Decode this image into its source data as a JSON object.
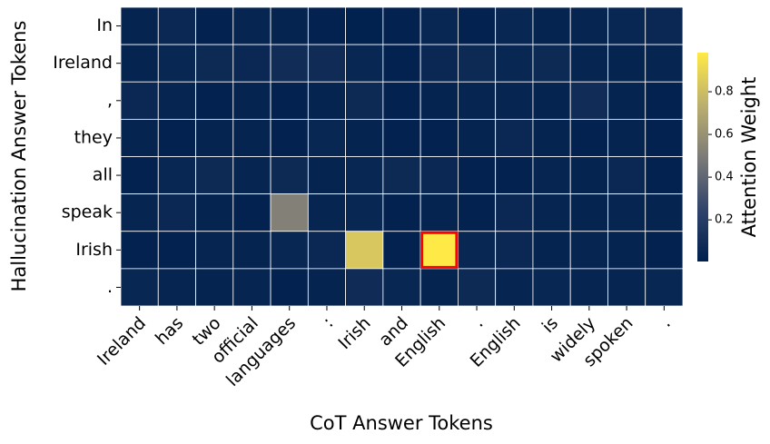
{
  "chart_data": {
    "type": "heatmap",
    "x_label": "CoT Answer Tokens",
    "y_label": "Hallucination Answer Tokens",
    "colorbar_label": "Attention Weight",
    "colormap": "cividis",
    "x": [
      "Ireland",
      "has",
      "two",
      "official",
      "languages",
      ":",
      "Irish",
      "and",
      "English",
      ".",
      "English",
      "is",
      "widely",
      "spoken",
      "."
    ],
    "y": [
      "In",
      "Ireland",
      ",",
      "they",
      "all",
      "speak",
      "Irish",
      "."
    ],
    "values": [
      [
        0.03,
        0.06,
        0.02,
        0.04,
        0.03,
        0.02,
        0.01,
        0.02,
        0.05,
        0.02,
        0.05,
        0.03,
        0.04,
        0.05,
        0.06
      ],
      [
        0.03,
        0.05,
        0.07,
        0.06,
        0.09,
        0.08,
        0.05,
        0.02,
        0.06,
        0.07,
        0.05,
        0.07,
        0.04,
        0.03,
        0.04
      ],
      [
        0.06,
        0.04,
        0.02,
        0.03,
        0.02,
        0.03,
        0.07,
        0.02,
        0.03,
        0.04,
        0.04,
        0.03,
        0.09,
        0.03,
        0.02
      ],
      [
        0.03,
        0.02,
        0.03,
        0.03,
        0.02,
        0.05,
        0.03,
        0.02,
        0.02,
        0.03,
        0.06,
        0.03,
        0.02,
        0.03,
        0.02
      ],
      [
        0.02,
        0.05,
        0.07,
        0.04,
        0.07,
        0.03,
        0.05,
        0.07,
        0.06,
        0.02,
        0.02,
        0.04,
        0.03,
        0.06,
        0.02
      ],
      [
        0.04,
        0.06,
        0.03,
        0.02,
        0.52,
        0.04,
        0.05,
        0.02,
        0.03,
        0.02,
        0.06,
        0.04,
        0.03,
        0.04,
        0.03
      ],
      [
        0.02,
        0.02,
        0.04,
        0.03,
        0.05,
        0.06,
        0.84,
        0.02,
        0.98,
        0.05,
        0.06,
        0.03,
        0.04,
        0.03,
        0.02
      ],
      [
        0.05,
        0.04,
        0.03,
        0.04,
        0.02,
        0.03,
        0.08,
        0.05,
        0.03,
        0.07,
        0.04,
        0.05,
        0.04,
        0.04,
        0.05
      ]
    ],
    "clim": [
      0.005,
      0.983
    ],
    "cticks": [
      0.2,
      0.4,
      0.6,
      0.8
    ],
    "highlight": {
      "row": 6,
      "column": 8,
      "color": "#ff0000"
    }
  }
}
